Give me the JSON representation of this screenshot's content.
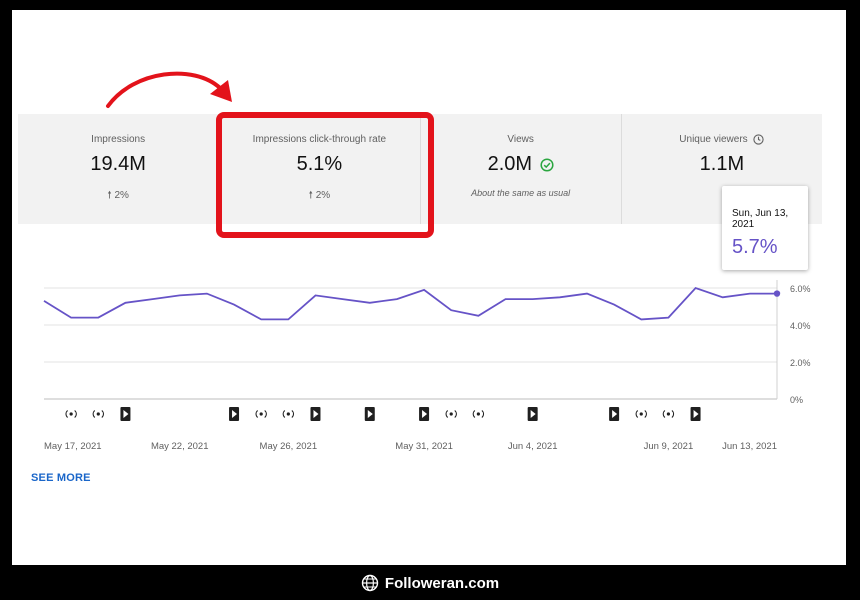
{
  "stats": [
    {
      "label": "Impressions",
      "value": "19.4M",
      "change": "2%"
    },
    {
      "label": "Impressions click-through rate",
      "value": "5.1%",
      "change": "2%"
    },
    {
      "label": "Views",
      "value": "2.0M",
      "note": "About the same as usual"
    },
    {
      "label": "Unique viewers",
      "value": "1.1M"
    }
  ],
  "tooltip": {
    "date": "Sun, Jun 13, 2021",
    "value": "5.7%"
  },
  "chart_data": {
    "type": "line",
    "x": [
      "May 17, 2021",
      "May 18, 2021",
      "May 19, 2021",
      "May 20, 2021",
      "May 21, 2021",
      "May 22, 2021",
      "May 23, 2021",
      "May 24, 2021",
      "May 25, 2021",
      "May 26, 2021",
      "May 27, 2021",
      "May 28, 2021",
      "May 29, 2021",
      "May 30, 2021",
      "May 31, 2021",
      "Jun 1, 2021",
      "Jun 2, 2021",
      "Jun 3, 2021",
      "Jun 4, 2021",
      "Jun 5, 2021",
      "Jun 6, 2021",
      "Jun 7, 2021",
      "Jun 8, 2021",
      "Jun 9, 2021",
      "Jun 10, 2021",
      "Jun 11, 2021",
      "Jun 12, 2021",
      "Jun 13, 2021"
    ],
    "series": [
      {
        "values": [
          5.3,
          4.4,
          4.4,
          5.2,
          5.4,
          5.6,
          5.7,
          5.1,
          4.3,
          4.3,
          5.6,
          5.4,
          5.2,
          5.4,
          5.9,
          4.8,
          4.5,
          5.4,
          5.4,
          5.5,
          5.7,
          5.1,
          4.3,
          4.4,
          6.0,
          5.5,
          5.7,
          5.7
        ]
      }
    ],
    "y_ticks": [
      "6.0%",
      "4.0%",
      "2.0%",
      "0%"
    ],
    "ylim": [
      0,
      6
    ],
    "x_tick_labels": [
      {
        "label": "May 17, 2021",
        "index": 0
      },
      {
        "label": "May 22, 2021",
        "index": 5
      },
      {
        "label": "May 26, 2021",
        "index": 9
      },
      {
        "label": "May 31, 2021",
        "index": 14
      },
      {
        "label": "Jun 4, 2021",
        "index": 18
      },
      {
        "label": "Jun 9, 2021",
        "index": 23
      },
      {
        "label": "Jun 13, 2021",
        "index": 27
      }
    ],
    "markers": [
      {
        "type": "live",
        "index": 1
      },
      {
        "type": "live",
        "index": 2
      },
      {
        "type": "video",
        "index": 3
      },
      {
        "type": "video",
        "index": 7
      },
      {
        "type": "live",
        "index": 8
      },
      {
        "type": "live",
        "index": 9
      },
      {
        "type": "video",
        "index": 10
      },
      {
        "type": "video",
        "index": 12
      },
      {
        "type": "video",
        "index": 14
      },
      {
        "type": "live",
        "index": 15
      },
      {
        "type": "live",
        "index": 16
      },
      {
        "type": "video",
        "index": 18
      },
      {
        "type": "video",
        "index": 21
      },
      {
        "type": "live",
        "index": 22
      },
      {
        "type": "live",
        "index": 23
      },
      {
        "type": "video",
        "index": 24
      }
    ],
    "line_color": "#6653c7",
    "grid": true
  },
  "see_more": "SEE MORE",
  "footer": {
    "site": "Followeran.com",
    "icon": "globe-icon"
  },
  "colors": {
    "highlight": "#e3131b",
    "accent": "#6653c7",
    "link": "#1a66c9"
  }
}
